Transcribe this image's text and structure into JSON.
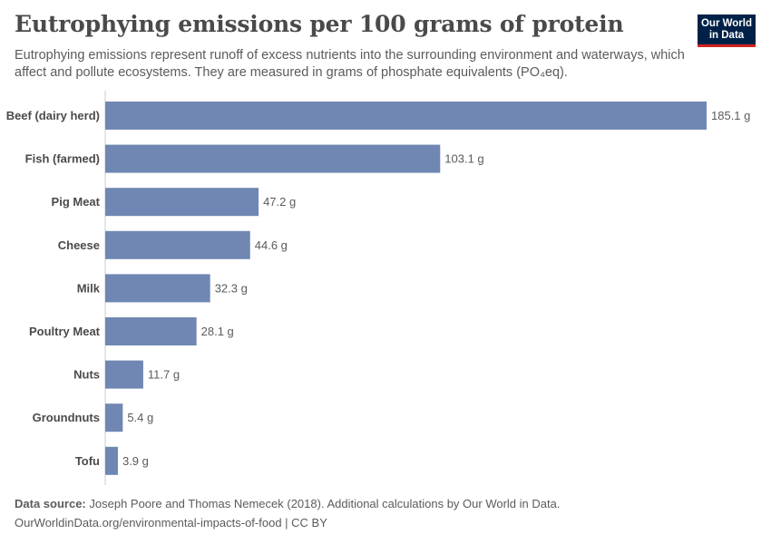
{
  "header": {
    "title": "Eutrophying emissions per 100 grams of protein",
    "subtitle": "Eutrophying emissions represent runoff of excess nutrients into the surrounding environment and waterways, which affect and pollute ecosystems. They are measured in grams of phosphate equivalents (PO₄eq).",
    "logo_line1": "Our World",
    "logo_line2": "in Data"
  },
  "footer": {
    "source_label": "Data source:",
    "source_text": "Joseph Poore and Thomas Nemecek (2018). Additional calculations by Our World in Data.",
    "url_text": "OurWorldinData.org/environmental-impacts-of-food | CC BY"
  },
  "colors": {
    "bar": "#6f87b2",
    "axis": "#cccccc",
    "logo_bg": "#002147",
    "logo_accent": "#ce261e"
  },
  "chart_data": {
    "type": "bar",
    "orientation": "horizontal",
    "categories": [
      "Beef (dairy herd)",
      "Fish (farmed)",
      "Pig Meat",
      "Cheese",
      "Milk",
      "Poultry Meat",
      "Nuts",
      "Groundnuts",
      "Tofu"
    ],
    "values": [
      185.1,
      103.1,
      47.2,
      44.6,
      32.3,
      28.1,
      11.7,
      5.4,
      3.9
    ],
    "labels": [
      "185.1 g",
      "103.1 g",
      "47.2 g",
      "44.6 g",
      "32.3 g",
      "28.1 g",
      "11.7 g",
      "5.4 g",
      "3.9 g"
    ],
    "xlim": [
      0,
      185.1
    ],
    "grid": false
  }
}
